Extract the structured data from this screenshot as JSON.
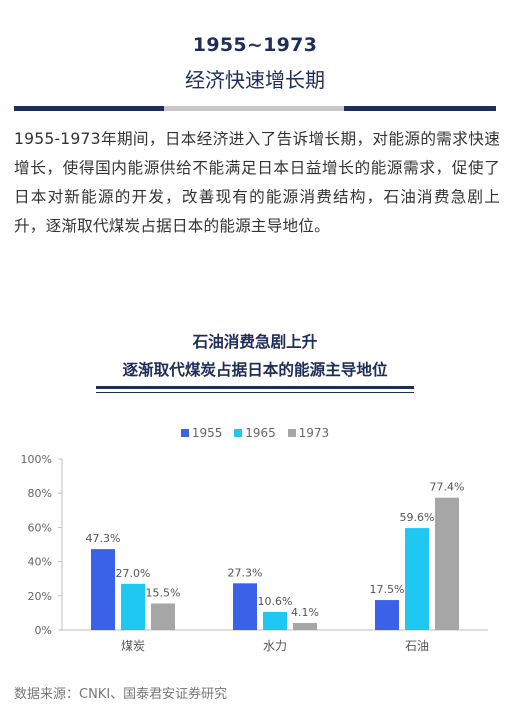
{
  "header": {
    "year_range": "1955~1973",
    "subtitle": "经济快速增长期"
  },
  "paragraph": "1955-1973年期间，日本经济进入了告诉增长期，对能源的需求快速增长，使得国内能源供给不能满足日本日益增长的能源需求，促使了日本对新能源的开发，改善现有的能源消费结构，石油消费急剧上升，逐渐取代煤炭占据日本的能源主导地位。",
  "chart_title_1": "石油消费急剧上升",
  "chart_title_2": "逐渐取代煤炭占据日本的能源主导地位",
  "source": "数据来源：CNKI、国泰君安证券研究",
  "colors": {
    "navy": "#1f2d5a",
    "divider_gray": "#c8c8c8"
  },
  "chart_data": {
    "type": "bar",
    "categories": [
      "煤炭",
      "水力",
      "石油"
    ],
    "series": [
      {
        "name": "1955",
        "values": [
          47.3,
          27.3,
          17.5
        ],
        "color": "#3a62e8"
      },
      {
        "name": "1965",
        "values": [
          27.0,
          10.6,
          59.6
        ],
        "color": "#1ec8f0"
      },
      {
        "name": "1973",
        "values": [
          15.5,
          4.1,
          77.4
        ],
        "color": "#a6a6a6"
      }
    ],
    "data_labels": [
      [
        "47.3%",
        "27.3%",
        "17.5%"
      ],
      [
        "27.0%",
        "10.6%",
        "59.6%"
      ],
      [
        "15.5%",
        "4.1%",
        "77.4%"
      ]
    ],
    "y_ticks": [
      "0%",
      "20%",
      "40%",
      "60%",
      "80%",
      "100%"
    ],
    "ylim": [
      0,
      100
    ],
    "legend_position": "top-center",
    "grid": false
  }
}
